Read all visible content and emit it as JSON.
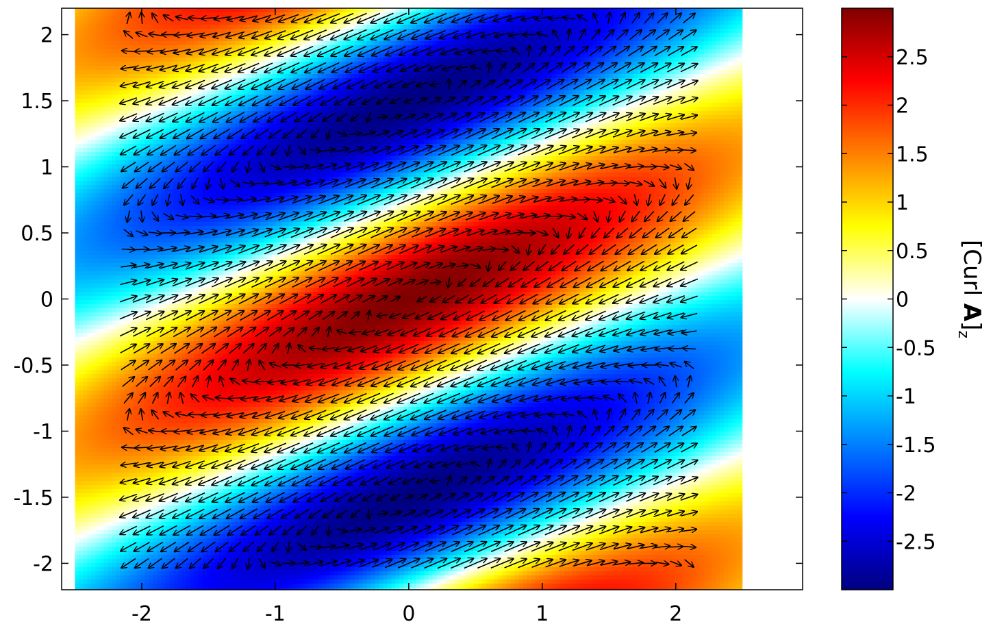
{
  "chart_data": {
    "type": "heatmap",
    "subtype": "vector-field-over-heatmap",
    "title": "",
    "xlabel": "",
    "ylabel": "",
    "xlim": [
      -2.6,
      2.95
    ],
    "ylim": [
      -2.2,
      2.2
    ],
    "data_extent": {
      "x": [
        -2.5,
        2.5
      ],
      "y": [
        -2.2,
        2.2
      ]
    },
    "x_ticks": [
      -2,
      -1,
      0,
      1,
      2
    ],
    "x_tick_labels": [
      "-2",
      "-1",
      "0",
      "1",
      "2"
    ],
    "y_ticks": [
      2,
      1.5,
      1,
      0.5,
      0,
      -0.5,
      -1,
      -1.5,
      -2
    ],
    "y_tick_labels": [
      "2",
      "1.5",
      "1",
      "0.5",
      "0",
      "-0.5",
      "-1",
      "-1.5",
      "-2"
    ],
    "colormap": "jet",
    "field": {
      "description_of_field": "curl z-component, approx 3*cos(2.1*y - 0.9*x) * exp(-x^2/8)",
      "amplitude": 3.0,
      "ky": 2.1,
      "kx": 0.9,
      "envelope_sigma2": 8.0
    },
    "arrows": {
      "x_range": [
        -2.1,
        2.1
      ],
      "x_step": 0.1,
      "y_range": [
        -2.0,
        2.2
      ],
      "y_step": 0.125
    },
    "colorbar": {
      "range": [
        -3,
        3
      ],
      "ticks": [
        2.5,
        2,
        1.5,
        1,
        0.5,
        0,
        -0.5,
        -1,
        -1.5,
        -2,
        -2.5
      ],
      "tick_labels": [
        "2.5",
        "2",
        "1.5",
        "1",
        "0.5",
        "0",
        "-0.5",
        "-1",
        "-1.5",
        "-2",
        "-2.5"
      ],
      "label_prefix": "[Curl ",
      "label_bold": "A",
      "label_suffix": "]",
      "label_subscript": "z"
    }
  }
}
